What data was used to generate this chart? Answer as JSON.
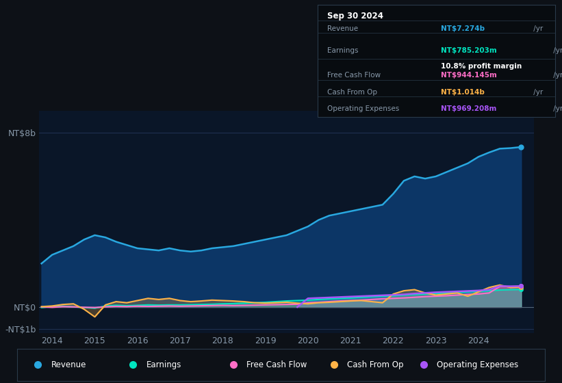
{
  "bg_color": "#0d1117",
  "plot_bg_color": "#0a1628",
  "grid_color": "#1e3050",
  "xlim": [
    2013.7,
    2025.3
  ],
  "ylim": [
    -1200000000.0,
    9000000000.0
  ],
  "yticks": [
    -1000000000.0,
    0,
    8000000000.0
  ],
  "ytick_labels": [
    "-NT$1b",
    "NT$0",
    "NT$8b"
  ],
  "xtick_years": [
    2014,
    2015,
    2016,
    2017,
    2018,
    2019,
    2020,
    2021,
    2022,
    2023,
    2024
  ],
  "series": {
    "revenue": {
      "color": "#29a8e0",
      "fill_color": "#0d3a6e",
      "fill_alpha": 0.9,
      "label": "Revenue"
    },
    "earnings": {
      "color": "#00e5c0",
      "fill_color": "#00e5c0",
      "fill_alpha": 0.3,
      "label": "Earnings"
    },
    "fcf": {
      "color": "#ff6ec7",
      "fill_color": "#ff6ec7",
      "fill_alpha": 0.2,
      "label": "Free Cash Flow"
    },
    "cashfromop": {
      "color": "#ffb347",
      "fill_color": "#ffb347",
      "fill_alpha": 0.25,
      "label": "Cash From Op"
    },
    "opex": {
      "color": "#a855f7",
      "fill_color": "#a855f7",
      "fill_alpha": 0.35,
      "label": "Operating Expenses"
    }
  },
  "revenue_data": {
    "x": [
      2013.75,
      2014.0,
      2014.25,
      2014.5,
      2014.75,
      2015.0,
      2015.25,
      2015.5,
      2015.75,
      2016.0,
      2016.25,
      2016.5,
      2016.75,
      2017.0,
      2017.25,
      2017.5,
      2017.75,
      2018.0,
      2018.25,
      2018.5,
      2018.75,
      2019.0,
      2019.25,
      2019.5,
      2019.75,
      2020.0,
      2020.25,
      2020.5,
      2020.75,
      2021.0,
      2021.25,
      2021.5,
      2021.75,
      2022.0,
      2022.25,
      2022.5,
      2022.75,
      2023.0,
      2023.25,
      2023.5,
      2023.75,
      2024.0,
      2024.25,
      2024.5,
      2024.75,
      2025.0
    ],
    "y": [
      2000000000.0,
      2400000000.0,
      2600000000.0,
      2800000000.0,
      3100000000.0,
      3300000000.0,
      3200000000.0,
      3000000000.0,
      2850000000.0,
      2700000000.0,
      2650000000.0,
      2600000000.0,
      2700000000.0,
      2600000000.0,
      2550000000.0,
      2600000000.0,
      2700000000.0,
      2750000000.0,
      2800000000.0,
      2900000000.0,
      3000000000.0,
      3100000000.0,
      3200000000.0,
      3300000000.0,
      3500000000.0,
      3700000000.0,
      4000000000.0,
      4200000000.0,
      4300000000.0,
      4400000000.0,
      4500000000.0,
      4600000000.0,
      4700000000.0,
      5200000000.0,
      5800000000.0,
      6000000000.0,
      5900000000.0,
      6000000000.0,
      6200000000.0,
      6400000000.0,
      6600000000.0,
      6900000000.0,
      7100000000.0,
      7274000000.0,
      7300000000.0,
      7350000000.0
    ]
  },
  "earnings_data": {
    "x": [
      2013.75,
      2014.0,
      2014.25,
      2014.5,
      2014.75,
      2015.0,
      2015.25,
      2015.5,
      2015.75,
      2016.0,
      2016.25,
      2016.5,
      2016.75,
      2017.0,
      2017.25,
      2017.5,
      2017.75,
      2018.0,
      2018.25,
      2018.5,
      2018.75,
      2019.0,
      2019.25,
      2019.5,
      2019.75,
      2020.0,
      2020.25,
      2020.5,
      2020.75,
      2021.0,
      2021.25,
      2021.5,
      2021.75,
      2022.0,
      2022.25,
      2022.5,
      2022.75,
      2023.0,
      2023.25,
      2023.5,
      2023.75,
      2024.0,
      2024.25,
      2024.5,
      2024.75,
      2025.0
    ],
    "y": [
      -20000000.0,
      20000000.0,
      40000000.0,
      10000000.0,
      -20000000.0,
      -50000000.0,
      50000000.0,
      80000000.0,
      60000000.0,
      80000000.0,
      100000000.0,
      90000000.0,
      100000000.0,
      100000000.0,
      110000000.0,
      120000000.0,
      130000000.0,
      150000000.0,
      160000000.0,
      180000000.0,
      200000000.0,
      220000000.0,
      250000000.0,
      280000000.0,
      300000000.0,
      320000000.0,
      350000000.0,
      380000000.0,
      400000000.0,
      420000000.0,
      450000000.0,
      480000000.0,
      500000000.0,
      520000000.0,
      550000000.0,
      580000000.0,
      600000000.0,
      620000000.0,
      650000000.0,
      680000000.0,
      700000000.0,
      720000000.0,
      750000000.0,
      785000000.0,
      800000000.0,
      810000000.0
    ]
  },
  "fcf_data": {
    "x": [
      2013.75,
      2014.0,
      2014.25,
      2014.5,
      2014.75,
      2015.0,
      2015.25,
      2015.5,
      2015.75,
      2016.0,
      2016.25,
      2016.5,
      2016.75,
      2017.0,
      2017.25,
      2017.5,
      2017.75,
      2018.0,
      2018.25,
      2018.5,
      2018.75,
      2019.0,
      2019.25,
      2019.5,
      2019.75,
      2020.0,
      2020.25,
      2020.5,
      2020.75,
      2021.0,
      2021.25,
      2021.5,
      2021.75,
      2022.0,
      2022.25,
      2022.5,
      2022.75,
      2023.0,
      2023.25,
      2023.5,
      2023.75,
      2024.0,
      2024.25,
      2024.5,
      2024.75,
      2025.0
    ],
    "y": [
      10000000.0,
      -10000000.0,
      20000000.0,
      10000000.0,
      -10000000.0,
      -20000000.0,
      10000000.0,
      30000000.0,
      20000000.0,
      40000000.0,
      30000000.0,
      40000000.0,
      50000000.0,
      40000000.0,
      50000000.0,
      60000000.0,
      70000000.0,
      80000000.0,
      70000000.0,
      80000000.0,
      90000000.0,
      100000000.0,
      110000000.0,
      120000000.0,
      130000000.0,
      200000000.0,
      220000000.0,
      250000000.0,
      280000000.0,
      300000000.0,
      320000000.0,
      350000000.0,
      380000000.0,
      400000000.0,
      420000000.0,
      450000000.0,
      480000000.0,
      500000000.0,
      520000000.0,
      550000000.0,
      580000000.0,
      600000000.0,
      650000000.0,
      944000000.0,
      950000000.0,
      960000000.0
    ]
  },
  "cashfromop_data": {
    "x": [
      2013.75,
      2014.0,
      2014.25,
      2014.5,
      2014.75,
      2015.0,
      2015.25,
      2015.5,
      2015.75,
      2016.0,
      2016.25,
      2016.5,
      2016.75,
      2017.0,
      2017.25,
      2017.5,
      2017.75,
      2018.0,
      2018.25,
      2018.5,
      2018.75,
      2019.0,
      2019.25,
      2019.5,
      2019.75,
      2020.0,
      2020.25,
      2020.5,
      2020.75,
      2021.0,
      2021.25,
      2021.5,
      2021.75,
      2022.0,
      2022.25,
      2022.5,
      2022.75,
      2023.0,
      2023.25,
      2023.5,
      2023.75,
      2024.0,
      2024.25,
      2024.5,
      2024.75,
      2025.0
    ],
    "y": [
      20000000.0,
      50000000.0,
      120000000.0,
      150000000.0,
      -100000000.0,
      -450000000.0,
      100000000.0,
      250000000.0,
      200000000.0,
      300000000.0,
      400000000.0,
      350000000.0,
      400000000.0,
      300000000.0,
      250000000.0,
      280000000.0,
      320000000.0,
      300000000.0,
      280000000.0,
      250000000.0,
      200000000.0,
      180000000.0,
      200000000.0,
      220000000.0,
      180000000.0,
      150000000.0,
      200000000.0,
      220000000.0,
      250000000.0,
      280000000.0,
      300000000.0,
      250000000.0,
      200000000.0,
      600000000.0,
      750000000.0,
      800000000.0,
      650000000.0,
      550000000.0,
      600000000.0,
      650000000.0,
      500000000.0,
      700000000.0,
      900000000.0,
      1014000000.0,
      900000000.0,
      920000000.0
    ]
  },
  "opex_data": {
    "x": [
      2019.75,
      2020.0,
      2020.25,
      2020.5,
      2020.75,
      2021.0,
      2021.25,
      2021.5,
      2021.75,
      2022.0,
      2022.25,
      2022.5,
      2022.75,
      2023.0,
      2023.25,
      2023.5,
      2023.75,
      2024.0,
      2024.25,
      2024.5,
      2024.75,
      2025.0
    ],
    "y": [
      0.0,
      400000000.0,
      420000000.0,
      440000000.0,
      460000000.0,
      480000000.0,
      500000000.0,
      520000000.0,
      540000000.0,
      560000000.0,
      580000000.0,
      620000000.0,
      650000000.0,
      680000000.0,
      700000000.0,
      720000000.0,
      740000000.0,
      760000000.0,
      800000000.0,
      969000000.0,
      950000000.0,
      960000000.0
    ]
  },
  "info_box": {
    "date": "Sep 30 2024",
    "rows": [
      {
        "label": "Revenue",
        "value": "NT$7.274b",
        "value_color": "#29a8e0",
        "suffix": " /yr",
        "extra": null
      },
      {
        "label": "Earnings",
        "value": "NT$785.203m",
        "value_color": "#00e5c0",
        "suffix": " /yr",
        "extra": "10.8% profit margin"
      },
      {
        "label": "Free Cash Flow",
        "value": "NT$944.145m",
        "value_color": "#ff6ec7",
        "suffix": " /yr",
        "extra": null
      },
      {
        "label": "Cash From Op",
        "value": "NT$1.014b",
        "value_color": "#ffb347",
        "suffix": " /yr",
        "extra": null
      },
      {
        "label": "Operating Expenses",
        "value": "NT$969.208m",
        "value_color": "#a855f7",
        "suffix": " /yr",
        "extra": null
      }
    ]
  },
  "legend_items": [
    {
      "label": "Revenue",
      "color": "#29a8e0"
    },
    {
      "label": "Earnings",
      "color": "#00e5c0"
    },
    {
      "label": "Free Cash Flow",
      "color": "#ff6ec7"
    },
    {
      "label": "Cash From Op",
      "color": "#ffb347"
    },
    {
      "label": "Operating Expenses",
      "color": "#a855f7"
    }
  ]
}
